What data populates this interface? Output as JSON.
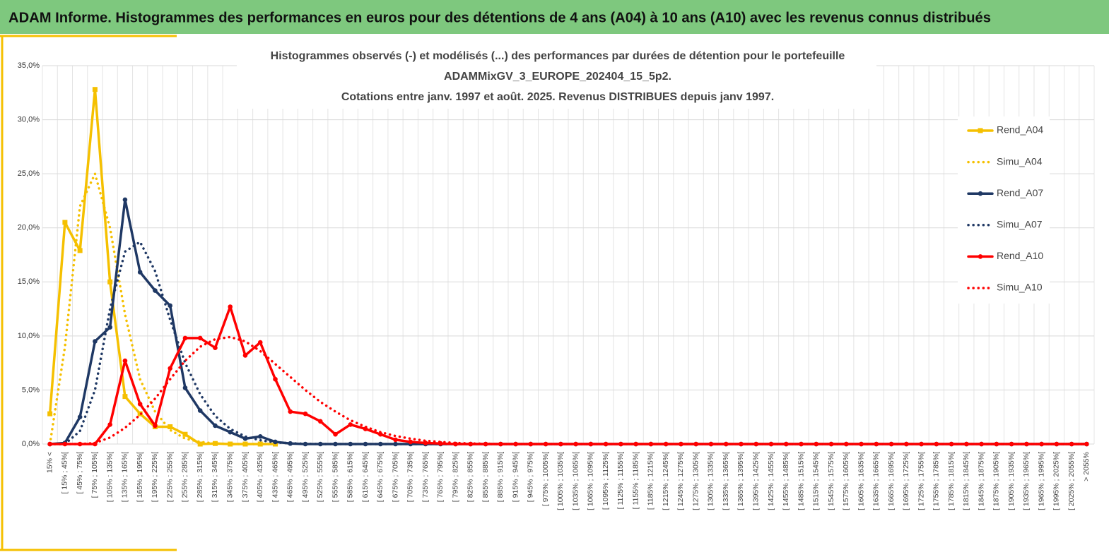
{
  "banner": "ADAM Informe. Histogrammes des performances en euros pour des détentions de 4 ans (A04) à 10 ans (A10) avec les revenus connus distribués",
  "chart_data": {
    "type": "line",
    "title": [
      "Histogrammes observés (-) et modélisés (...) des performances par durées de détention pour le portefeuille",
      "ADAMMixGV_3_EUROPE_202404_15_5p2.",
      "Cotations entre janv. 1997 et août. 2025. Revenus DISTRIBUES depuis janv 1997."
    ],
    "categories": [
      "15% <",
      "[ 15% ; 45%[",
      "[ 45% ; 75%[",
      "[ 75% ; 105%[",
      "[ 105% ; 135%[",
      "[ 135% ; 165%[",
      "[ 165% ; 195%[",
      "[ 195% ; 225%[",
      "[ 225% ; 255%[",
      "[ 255% ; 285%[",
      "[ 285% ; 315%[",
      "[ 315% ; 345%[",
      "[ 345% ; 375%[",
      "[ 375% ; 405%[",
      "[ 405% ; 435%[",
      "[ 435% ; 465%[",
      "[ 465% ; 495%[",
      "[ 495% ; 525%[",
      "[ 525% ; 555%[",
      "[ 555% ; 585%[",
      "[ 585% ; 615%[",
      "[ 615% ; 645%[",
      "[ 645% ; 675%[",
      "[ 675% ; 705%[",
      "[ 705% ; 735%[",
      "[ 735% ; 765%[",
      "[ 765% ; 795%[",
      "[ 795% ; 825%[",
      "[ 825% ; 855%[",
      "[ 855% ; 885%[",
      "[ 885% ; 915%[",
      "[ 915% ; 945%[",
      "[ 945% ; 975%[",
      "[ 975% ; 1005%[",
      "[ 1005% ; 1035%[",
      "[ 1035% ; 1065%[",
      "[ 1065% ; 1095%[",
      "[ 1095% ; 1125%[",
      "[ 1125% ; 1155%[",
      "[ 1155% ; 1185%[",
      "[ 1185% ; 1215%[",
      "[ 1215% ; 1245%[",
      "[ 1245% ; 1275%[",
      "[ 1275% ; 1305%[",
      "[ 1305% ; 1335%[",
      "[ 1335% ; 1365%[",
      "[ 1365% ; 1395%[",
      "[ 1395% ; 1425%[",
      "[ 1425% ; 1455%[",
      "[ 1455% ; 1485%[",
      "[ 1485% ; 1515%[",
      "[ 1515% ; 1545%[",
      "[ 1545% ; 1575%[",
      "[ 1575% ; 1605%[",
      "[ 1605% ; 1635%[",
      "[ 1635% ; 1665%[",
      "[ 1665% ; 1695%[",
      "[ 1695% ; 1725%[",
      "[ 1725% ; 1755%[",
      "[ 1755% ; 1785%[",
      "[ 1785% ; 1815%[",
      "[ 1815% ; 1845%[",
      "[ 1845% ; 1875%[",
      "[ 1875% ; 1905%[",
      "[ 1905% ; 1935%[",
      "[ 1935% ; 1965%[",
      "[ 1965% ; 1995%[",
      "[ 1995% ; 2025%[",
      "[ 2025% ; 2055%[",
      "> 2055%"
    ],
    "ylim": [
      0,
      35
    ],
    "yticks": [
      {
        "value": 0,
        "label": "0,0%"
      },
      {
        "value": 5,
        "label": "5,0%"
      },
      {
        "value": 10,
        "label": "10,0%"
      },
      {
        "value": 15,
        "label": "15,0%"
      },
      {
        "value": 20,
        "label": "20,0%"
      },
      {
        "value": 25,
        "label": "25,0%"
      },
      {
        "value": 30,
        "label": "30,0%"
      },
      {
        "value": 35,
        "label": "35,0%"
      }
    ],
    "grid": true,
    "legend": "right",
    "series": [
      {
        "name": "Rend_A04",
        "color": "#f5c000",
        "style": "solid",
        "marker": "square",
        "values": [
          2.8,
          20.5,
          17.9,
          32.8,
          15,
          4.4,
          2.8,
          1.6,
          1.6,
          0.9,
          0,
          0.05,
          0,
          0,
          0,
          0,
          null,
          null,
          null,
          null,
          null,
          null,
          null,
          null,
          null,
          null,
          null,
          null,
          null,
          null,
          null,
          null,
          null,
          null,
          null,
          null,
          null,
          null,
          null,
          null,
          null,
          null,
          null,
          null,
          null,
          null,
          null,
          null,
          null,
          null,
          null,
          null,
          null,
          null,
          null,
          null,
          null,
          null,
          null,
          null,
          null,
          null,
          null,
          null,
          null,
          null,
          null,
          null,
          null,
          null
        ]
      },
      {
        "name": "Simu_A04",
        "color": "#f5c000",
        "style": "dotted",
        "values": [
          0,
          9,
          22,
          25,
          20,
          12,
          6,
          3,
          1.3,
          0.5,
          0.2,
          0.05,
          0,
          0,
          0,
          0,
          null,
          null,
          null,
          null,
          null,
          null,
          null,
          null,
          null,
          null,
          null,
          null,
          null,
          null,
          null,
          null,
          null,
          null,
          null,
          null,
          null,
          null,
          null,
          null,
          null,
          null,
          null,
          null,
          null,
          null,
          null,
          null,
          null,
          null,
          null,
          null,
          null,
          null,
          null,
          null,
          null,
          null,
          null,
          null,
          null,
          null,
          null,
          null,
          null,
          null,
          null,
          null,
          null,
          null
        ]
      },
      {
        "name": "Rend_A07",
        "color": "#1f3864",
        "style": "solid",
        "marker": "circle",
        "values": [
          0,
          0.1,
          2.5,
          9.5,
          10.8,
          22.6,
          15.9,
          14.2,
          12.8,
          5.2,
          3.1,
          1.7,
          1.1,
          0.5,
          0.7,
          0.2,
          0.05,
          0,
          0,
          0,
          0,
          0,
          0,
          0,
          0,
          0,
          0,
          0,
          0,
          0,
          0,
          0,
          0,
          0,
          0,
          0,
          0,
          0,
          0,
          0,
          0,
          0,
          0,
          0,
          0,
          0,
          0,
          0,
          0,
          0,
          0,
          0,
          0,
          0,
          0,
          0,
          0,
          0,
          0,
          0,
          0,
          0,
          0,
          0,
          0,
          0,
          0,
          0,
          0,
          0
        ]
      },
      {
        "name": "Simu_A07",
        "color": "#1f3864",
        "style": "dotted",
        "values": [
          0,
          0,
          1.2,
          5,
          12.5,
          17.8,
          18.7,
          16,
          11.5,
          7.5,
          4.6,
          2.6,
          1.4,
          0.7,
          0.35,
          0.15,
          0.07,
          0.03,
          0,
          0,
          0,
          0,
          0,
          0,
          0,
          0,
          0,
          0,
          0,
          0,
          0,
          0,
          0,
          0,
          0,
          0,
          0,
          0,
          0,
          0,
          0,
          0,
          0,
          0,
          0,
          0,
          0,
          0,
          0,
          0,
          0,
          0,
          0,
          0,
          0,
          0,
          0,
          0,
          0,
          0,
          0,
          0,
          0,
          0,
          0,
          0,
          0,
          0,
          0,
          0
        ]
      },
      {
        "name": "Rend_A10",
        "color": "#ff0000",
        "style": "solid",
        "marker": "circle",
        "values": [
          0,
          0,
          0,
          0,
          1.8,
          7.7,
          3.7,
          1.7,
          7,
          9.8,
          9.8,
          8.9,
          12.7,
          8.2,
          9.4,
          6,
          3,
          2.8,
          2.1,
          0.9,
          1.8,
          1.4,
          0.9,
          0.4,
          0.2,
          0.1,
          0.05,
          0,
          0,
          0,
          0,
          0,
          0,
          0,
          0,
          0,
          0,
          0,
          0,
          0,
          0,
          0,
          0,
          0,
          0,
          0,
          0,
          0,
          0,
          0,
          0,
          0,
          0,
          0,
          0,
          0,
          0,
          0,
          0,
          0,
          0,
          0,
          0,
          0,
          0,
          0,
          0,
          0,
          0,
          0
        ]
      },
      {
        "name": "Simu_A10",
        "color": "#ff0000",
        "style": "dotted",
        "values": [
          0,
          0,
          0,
          0.1,
          0.6,
          1.5,
          2.7,
          4.2,
          6,
          7.7,
          9,
          9.7,
          9.9,
          9.5,
          8.6,
          7.4,
          6.2,
          5,
          3.9,
          3,
          2.2,
          1.6,
          1.1,
          0.75,
          0.5,
          0.3,
          0.2,
          0.1,
          0.05,
          0.03,
          0,
          0,
          0,
          0,
          0,
          0,
          0,
          0,
          0,
          0,
          0,
          0,
          0,
          0,
          0,
          0,
          0,
          0,
          0,
          0,
          0,
          0,
          0,
          0,
          0,
          0,
          0,
          0,
          0,
          0,
          0,
          0,
          0,
          0,
          0,
          0,
          0,
          0,
          0,
          0
        ]
      }
    ]
  }
}
